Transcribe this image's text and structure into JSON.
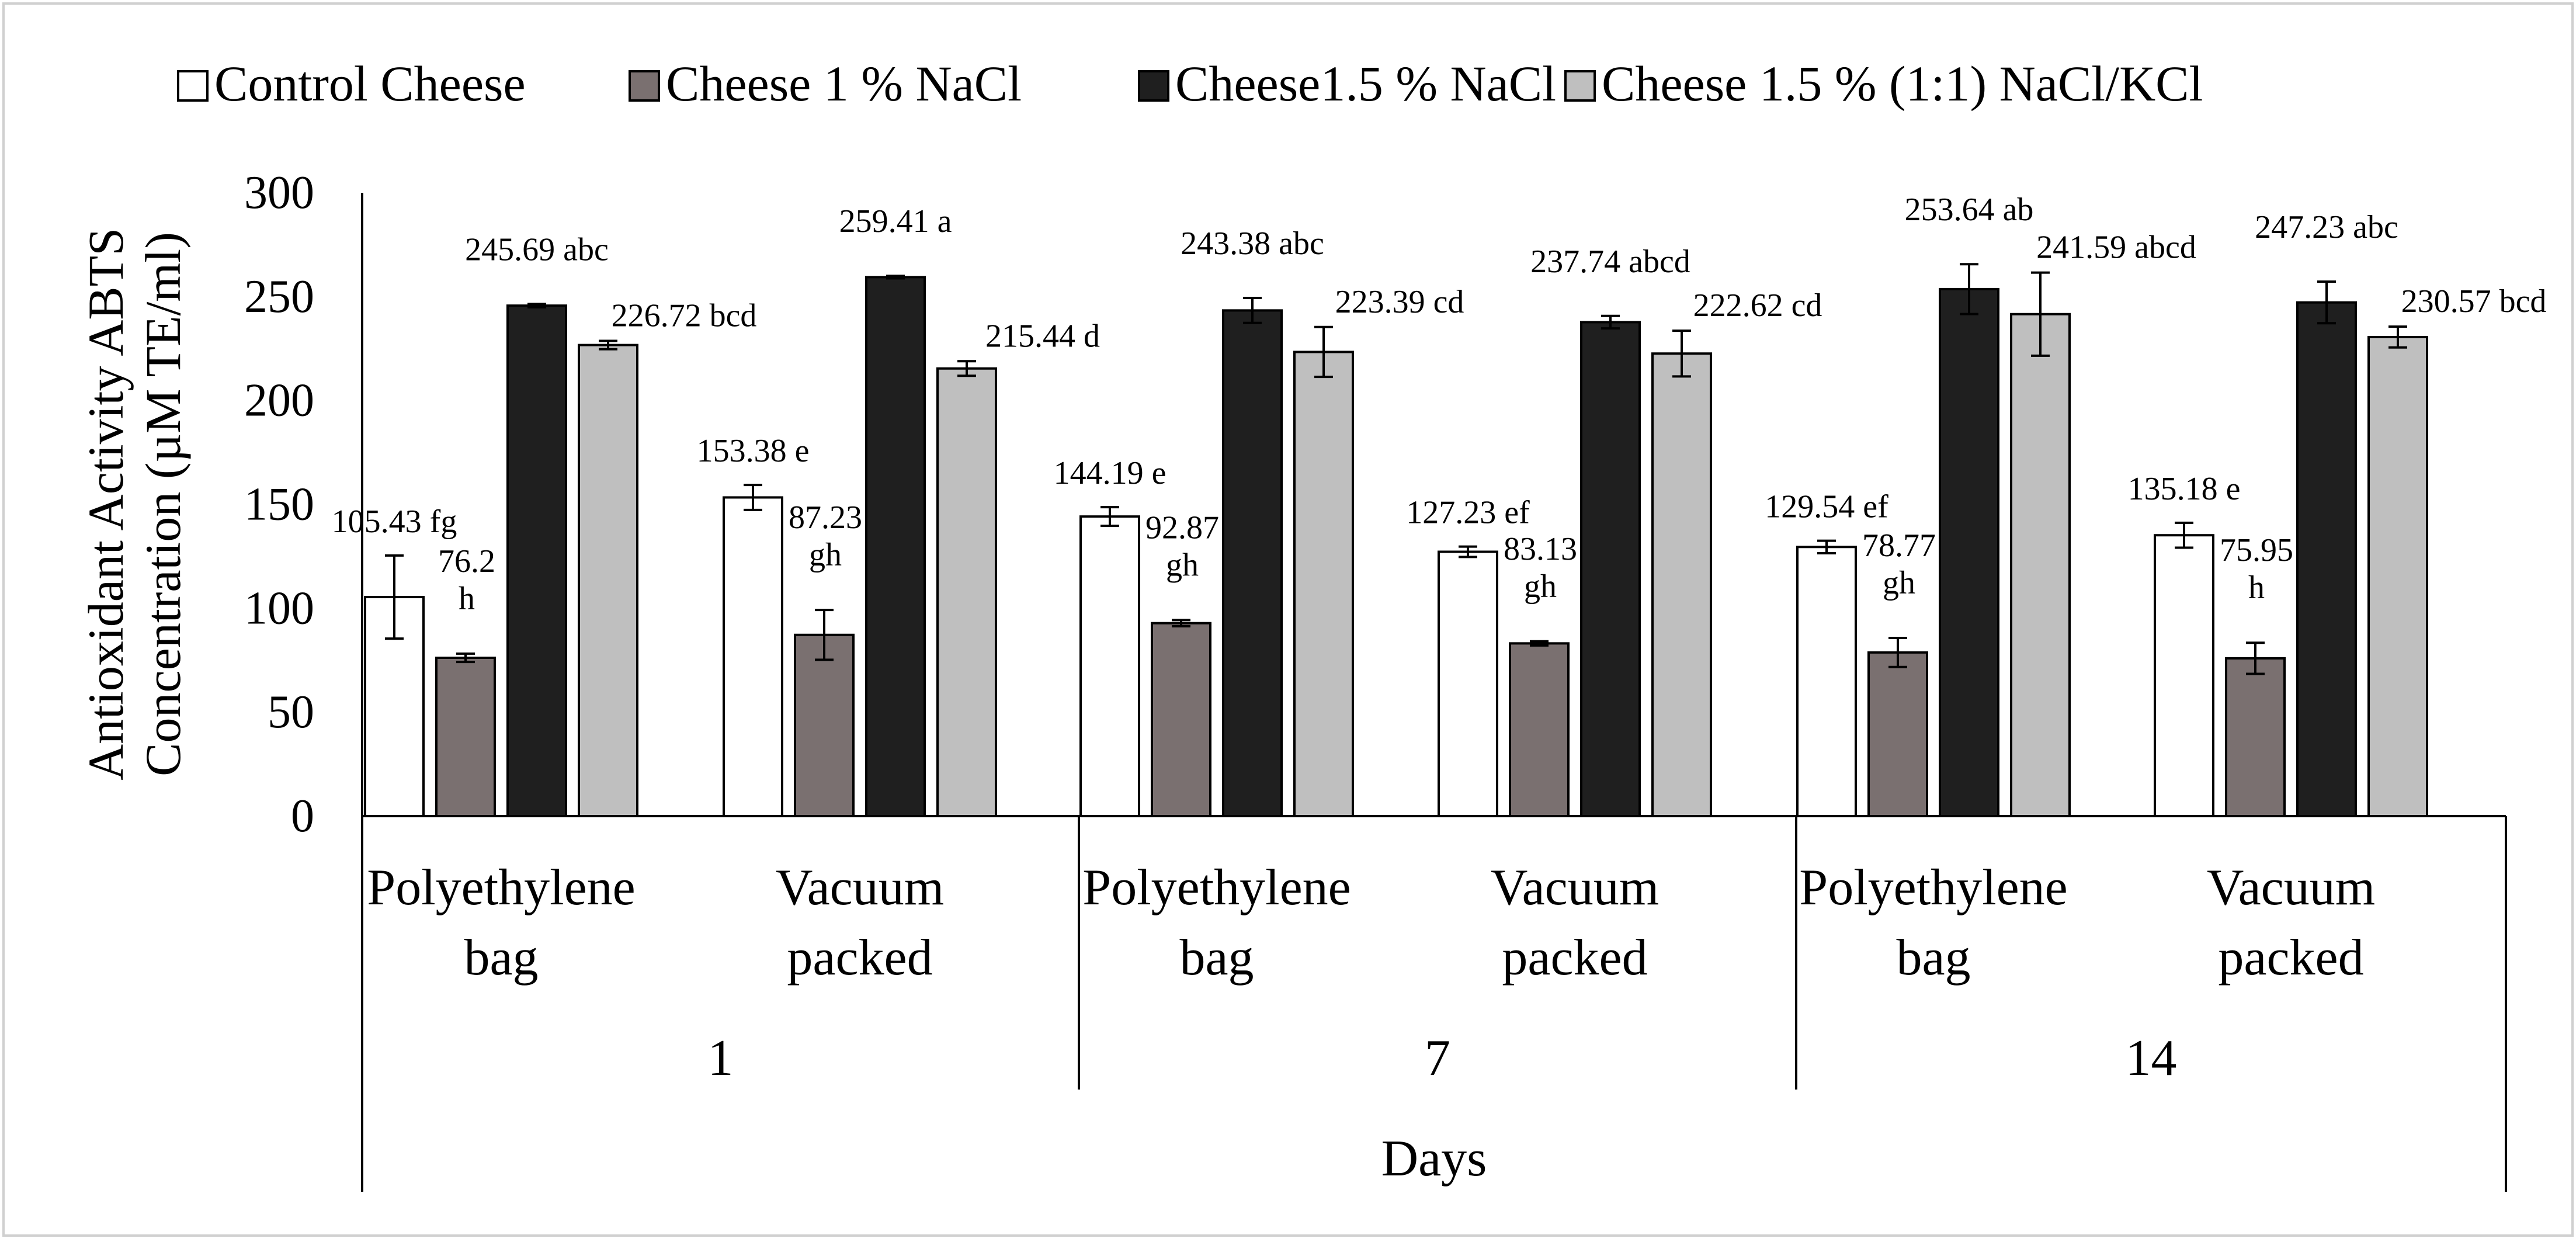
{
  "chart_data": {
    "type": "bar",
    "title": "",
    "ylabel_lines": [
      "Antioxidant Activity ABTS",
      "Concentration (µM TE/ml)"
    ],
    "xlabel": "Days",
    "ylim": [
      0,
      300
    ],
    "yticks": [
      0,
      50,
      100,
      150,
      200,
      250,
      300
    ],
    "grid": false,
    "legend_position": "top",
    "days": [
      "1",
      "7",
      "14"
    ],
    "packaging": [
      {
        "lines": [
          "Polyethylene",
          "bag"
        ]
      },
      {
        "lines": [
          "Vacuum",
          "packed"
        ]
      }
    ],
    "categories": [
      "1 Polyethylene bag",
      "1 Vacuum packed",
      "7 Polyethylene bag",
      "7 Vacuum packed",
      "14 Polyethylene bag",
      "14 Vacuum packed"
    ],
    "series": [
      {
        "name": "Control Cheese",
        "color": "#ffffff",
        "values": [
          105.43,
          153.38,
          144.19,
          127.23,
          129.54,
          135.18
        ],
        "errors": [
          20,
          6,
          4.5,
          2.5,
          3,
          6
        ],
        "labels": [
          [
            "105.43 fg"
          ],
          [
            "153.38  e"
          ],
          [
            "144.19 e"
          ],
          [
            "127.23 ef"
          ],
          [
            "129.54 ef"
          ],
          [
            "135.18 e"
          ]
        ]
      },
      {
        "name": "Cheese 1 % NaCl",
        "color": "#7a7070",
        "values": [
          76.2,
          87.23,
          92.87,
          83.13,
          78.77,
          75.95
        ],
        "errors": [
          2,
          12,
          1.5,
          1,
          7,
          7.5
        ],
        "labels": [
          [
            "76.2",
            "h"
          ],
          [
            "87.23",
            "gh"
          ],
          [
            "92.87",
            "gh"
          ],
          [
            "83.13",
            "gh"
          ],
          [
            "78.77",
            "gh"
          ],
          [
            "75.95",
            "h"
          ]
        ]
      },
      {
        "name": "Cheese1.5 % NaCl",
        "color": "#1f1f1f",
        "values": [
          245.69,
          259.41,
          243.38,
          237.74,
          253.64,
          247.23
        ],
        "errors": [
          0.8,
          0.6,
          6,
          3,
          12,
          10
        ],
        "labels": [
          [
            "245.69 abc"
          ],
          [
            "259.41  a"
          ],
          [
            "243.38  abc"
          ],
          [
            "237.74 abcd"
          ],
          [
            "253.64 ab"
          ],
          [
            "247.23 abc"
          ]
        ]
      },
      {
        "name": "Cheese 1.5 % (1:1) NaCl/KCl",
        "color": "#bfbfbf",
        "values": [
          226.72,
          215.44,
          223.39,
          222.62,
          241.59,
          230.57
        ],
        "errors": [
          2,
          3.5,
          12,
          11,
          20,
          5
        ],
        "labels": [
          [
            "226.72 bcd"
          ],
          [
            "215.44 d"
          ],
          [
            "223.39 cd"
          ],
          [
            "222.62 cd"
          ],
          [
            "241.59 abcd"
          ],
          [
            "230.57 bcd"
          ]
        ]
      }
    ]
  }
}
